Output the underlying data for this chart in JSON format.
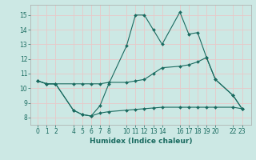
{
  "xlabel": "Humidex (Indice chaleur)",
  "bg_color": "#cce8e4",
  "grid_color": "#e8c8c8",
  "line_color": "#1a6b60",
  "ylim": [
    7.5,
    15.7
  ],
  "yticks": [
    8,
    9,
    10,
    11,
    12,
    13,
    14,
    15
  ],
  "xticks": [
    0,
    1,
    2,
    4,
    5,
    6,
    7,
    8,
    10,
    11,
    12,
    13,
    14,
    16,
    17,
    18,
    19,
    20,
    22,
    23
  ],
  "xlim": [
    -0.8,
    24.0
  ],
  "line1_x": [
    0,
    1,
    2,
    4,
    5,
    6,
    7,
    8,
    10,
    11,
    12,
    13,
    14,
    16,
    17,
    18,
    19,
    20,
    22,
    23
  ],
  "line1_y": [
    10.5,
    10.3,
    10.3,
    8.5,
    8.2,
    8.1,
    8.8,
    10.3,
    12.9,
    15.0,
    15.0,
    14.0,
    13.0,
    15.2,
    13.7,
    13.8,
    12.1,
    10.6,
    9.5,
    8.6
  ],
  "line2_x": [
    0,
    1,
    2,
    4,
    5,
    6,
    7,
    8,
    10,
    11,
    12,
    13,
    14,
    16,
    17,
    18,
    19,
    20,
    22,
    23
  ],
  "line2_y": [
    10.5,
    10.3,
    10.3,
    10.3,
    10.3,
    10.3,
    10.3,
    10.4,
    10.4,
    10.5,
    10.6,
    11.0,
    11.4,
    11.5,
    11.6,
    11.8,
    12.1,
    10.6,
    9.5,
    8.6
  ],
  "line3_x": [
    0,
    1,
    2,
    4,
    5,
    6,
    7,
    8,
    10,
    11,
    12,
    13,
    14,
    16,
    17,
    18,
    19,
    20,
    22,
    23
  ],
  "line3_y": [
    10.5,
    10.3,
    10.3,
    8.5,
    8.2,
    8.1,
    8.3,
    8.4,
    8.5,
    8.55,
    8.6,
    8.65,
    8.7,
    8.7,
    8.7,
    8.7,
    8.7,
    8.7,
    8.7,
    8.6
  ]
}
